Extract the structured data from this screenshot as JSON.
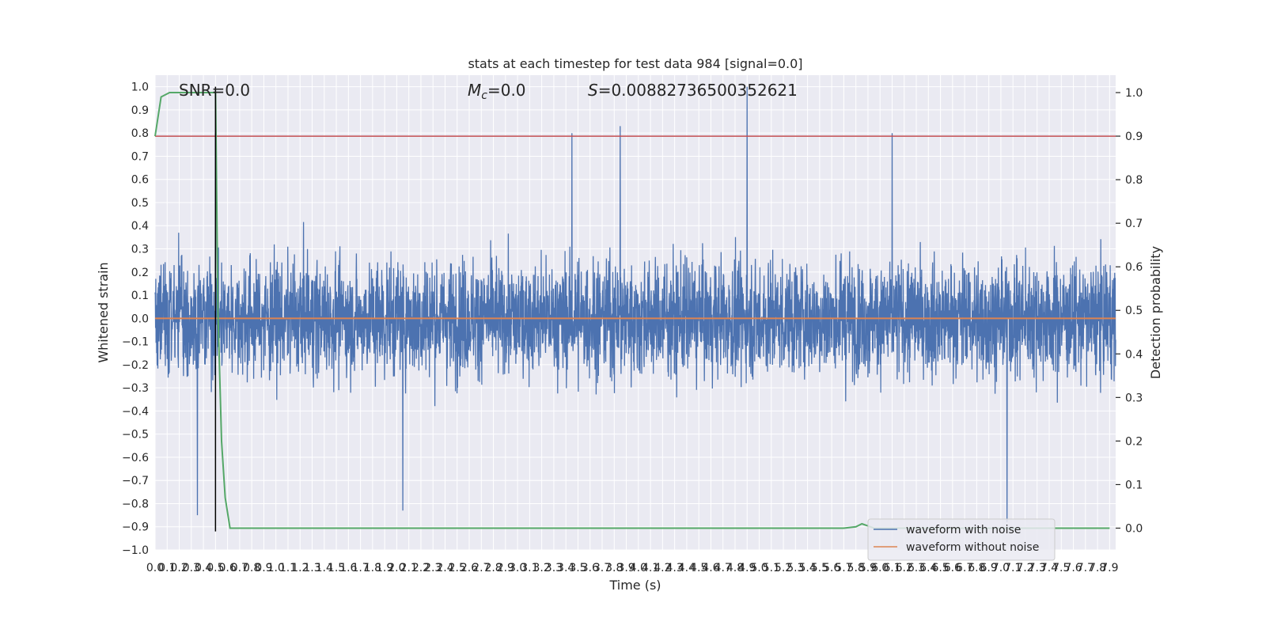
{
  "chart_data": {
    "type": "line",
    "title": "stats at each timestep for test data 984 [signal=0.0]",
    "xlabel": "Time (s)",
    "ylabel": "Whitened strain",
    "ylabel_right": "Detection probability",
    "xlim": [
      0.0,
      7.95
    ],
    "ylim": [
      -1.0,
      1.05
    ],
    "ylim_right": [
      -0.05,
      1.04
    ],
    "x_ticks": [
      0.0,
      0.1,
      0.2,
      0.3,
      0.4,
      0.5,
      0.6,
      0.7,
      0.8,
      0.9,
      1.0,
      1.1,
      1.2,
      1.3,
      1.4,
      1.5,
      1.6,
      1.7,
      1.8,
      1.9,
      2.0,
      2.1,
      2.2,
      2.3,
      2.4,
      2.5,
      2.6,
      2.7,
      2.8,
      2.9,
      3.0,
      3.1,
      3.2,
      3.3,
      3.4,
      3.5,
      3.6,
      3.7,
      3.8,
      3.9,
      4.0,
      4.1,
      4.2,
      4.3,
      4.4,
      4.5,
      4.6,
      4.7,
      4.8,
      4.9,
      5.0,
      5.1,
      5.2,
      5.3,
      5.4,
      5.5,
      5.6,
      5.7,
      5.8,
      5.9,
      6.0,
      6.1,
      6.2,
      6.3,
      6.4,
      6.5,
      6.6,
      6.7,
      6.8,
      6.9,
      7.0,
      7.1,
      7.2,
      7.3,
      7.4,
      7.5,
      7.6,
      7.7,
      7.8,
      7.9
    ],
    "x_tick_labels": [
      "0.0",
      "0.1",
      "0.2",
      "0.3",
      "0.4",
      "0.5",
      "0.6",
      "0.7",
      "0.8",
      "0.9",
      "1.0",
      "1.1",
      "1.2",
      "1.3",
      "1.4",
      "1.5",
      "1.6",
      "1.7",
      "1.8",
      "1.9",
      "2.0",
      "2.1",
      "2.2",
      "2.3",
      "2.4",
      "2.5",
      "2.6",
      "2.7",
      "2.8",
      "2.9",
      "3.0",
      "3.1",
      "3.2",
      "3.3",
      "3.4",
      "3.5",
      "3.6",
      "3.7",
      "3.8",
      "3.9",
      "4.0",
      "4.1",
      "4.2",
      "4.3",
      "4.4",
      "4.5",
      "4.6",
      "4.7",
      "4.8",
      "4.9",
      "5.0",
      "5.1",
      "5.2",
      "5.3",
      "5.4",
      "5.5",
      "5.6",
      "5.7",
      "5.8",
      "5.9",
      "6.0",
      "6.1",
      "6.2",
      "6.3",
      "6.4",
      "6.5",
      "6.6",
      "6.7",
      "6.8",
      "6.9",
      "7.0",
      "7.1",
      "7.2",
      "7.3",
      "7.4",
      "7.5",
      "7.6",
      "7.7",
      "7.8",
      "7.9"
    ],
    "y_ticks": [
      -1.0,
      -0.9,
      -0.8,
      -0.7,
      -0.6,
      -0.5,
      -0.4,
      -0.3,
      -0.2,
      -0.1,
      0.0,
      0.1,
      0.2,
      0.3,
      0.4,
      0.5,
      0.6,
      0.7,
      0.8,
      0.9,
      1.0
    ],
    "y_tick_labels": [
      "−1.0",
      "−0.9",
      "−0.8",
      "−0.7",
      "−0.6",
      "−0.5",
      "−0.4",
      "−0.3",
      "−0.2",
      "−0.1",
      "0.0",
      "0.1",
      "0.2",
      "0.3",
      "0.4",
      "0.5",
      "0.6",
      "0.7",
      "0.8",
      "0.9",
      "1.0"
    ],
    "y_ticks_right": [
      0.0,
      0.1,
      0.2,
      0.3,
      0.4,
      0.5,
      0.6,
      0.7,
      0.8,
      0.9,
      1.0
    ],
    "y_tick_labels_right": [
      "0.0",
      "0.1",
      "0.2",
      "0.3",
      "0.4",
      "0.5",
      "0.6",
      "0.7",
      "0.8",
      "0.9",
      "1.0"
    ],
    "grid": true,
    "legend_position": "lower-right",
    "annotations": [
      {
        "text": "SNR=0.0",
        "x": 0.2
      },
      {
        "text": "M",
        "sub": "c",
        "suffix": "=0.0",
        "x": 2.6
      },
      {
        "text": "S",
        "suffix": "=0.00882736500352621",
        "x": 3.6
      }
    ],
    "series": [
      {
        "name": "waveform with noise",
        "color": "#4c72b0",
        "kind": "noise",
        "envelope_typical": 0.38,
        "peak_max": 1.0,
        "peak_min": -0.88
      },
      {
        "name": "waveform without noise",
        "color": "#dd8452",
        "values_constant": 0.0
      },
      {
        "name": "",
        "axis": "right",
        "color": "#55a868",
        "x": [
          0.0,
          0.05,
          0.12,
          0.2,
          0.3,
          0.4,
          0.48,
          0.5,
          0.52,
          0.55,
          0.58,
          0.62,
          0.8,
          1.5,
          3.0,
          4.5,
          5.7,
          5.8,
          5.85,
          5.9,
          5.95,
          6.0,
          6.5,
          7.0,
          7.5,
          7.9
        ],
        "y": [
          0.9,
          0.99,
          1.0,
          1.0,
          1.0,
          1.0,
          1.0,
          1.0,
          0.5,
          0.2,
          0.07,
          0.0,
          0.0,
          0.0,
          0.0,
          0.0,
          0.0,
          0.003,
          0.01,
          0.005,
          0.0,
          0.0,
          0.0,
          0.0,
          0.0,
          0.0
        ]
      },
      {
        "name": "",
        "axis": "right",
        "color": "#c44e52",
        "kind": "threshold",
        "value": 0.9
      },
      {
        "name": "",
        "color": "#000000",
        "kind": "vline",
        "x": 0.5,
        "y_range": [
          -0.92,
          1.0
        ]
      }
    ]
  }
}
